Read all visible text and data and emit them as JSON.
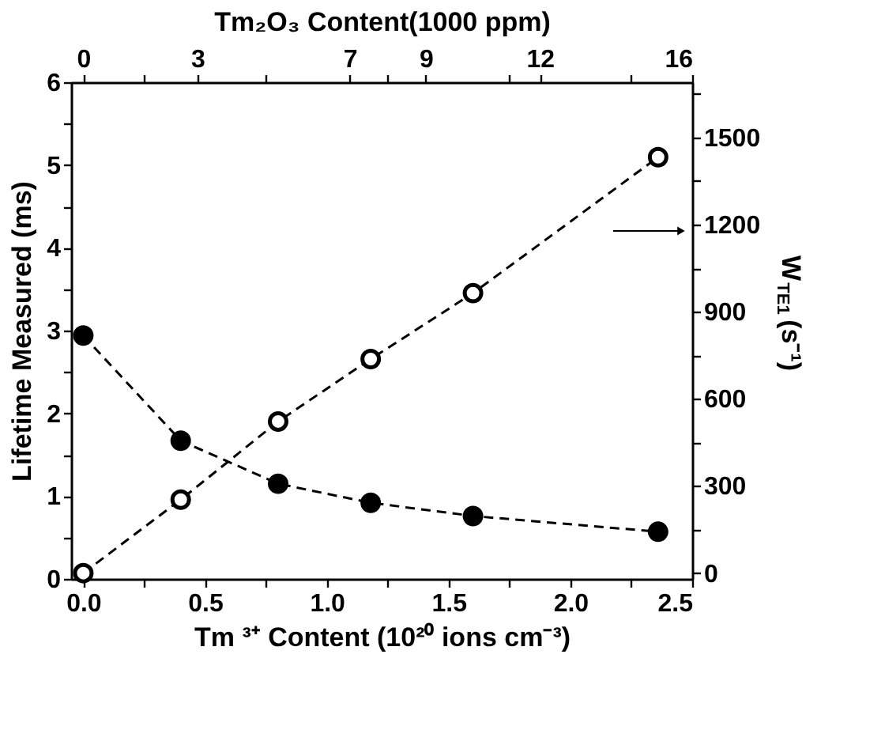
{
  "chart_data": {
    "type": "line",
    "xlabel": "Tm ³⁺ Content (10²⁰ ions cm⁻³)",
    "ylabel": "Lifetime Measured (ms)",
    "y2label": "W$_{TE1}$ (s⁻¹)",
    "x2label": "Tm₂O₃ Content(1000 ppm)",
    "xlim": [
      -0.05,
      2.5
    ],
    "xticks": [
      {
        "value": 0,
        "label": "0.0"
      },
      0.5,
      {
        "value": 1,
        "label": "1.0"
      },
      1.5,
      {
        "value": 2,
        "label": "2.0"
      },
      2.5,
      {
        "value": 0.25,
        "label": null
      },
      {
        "value": 0.75,
        "label": null
      },
      {
        "value": 1.25,
        "label": null
      },
      {
        "value": 1.75,
        "label": null
      },
      {
        "value": 2.25,
        "label": null
      }
    ],
    "x2lim": [
      -0.32,
      16
    ],
    "x2ticks": [
      0,
      3,
      7,
      9,
      12,
      16,
      {
        "value": 1.6,
        "label": null
      },
      {
        "value": 4.8,
        "label": null
      },
      {
        "value": 8,
        "label": null
      },
      {
        "value": 11.2,
        "label": null
      },
      {
        "value": 14.4,
        "label": null
      }
    ],
    "ylim": [
      0,
      6
    ],
    "yticks": [
      0,
      1,
      2,
      3,
      4,
      5,
      6,
      {
        "value": 0.5,
        "label": null
      },
      {
        "value": 1.5,
        "label": null
      },
      {
        "value": 2.5,
        "label": null
      },
      {
        "value": 3.5,
        "label": null
      },
      {
        "value": 4.5,
        "label": null
      },
      {
        "value": 5.5,
        "label": null
      }
    ],
    "y2lim": [
      -20,
      1690
    ],
    "y2ticks": [
      0,
      300,
      600,
      900,
      1200,
      1500,
      {
        "value": 150,
        "label": null
      },
      {
        "value": 450,
        "label": null
      },
      {
        "value": 750,
        "label": null
      },
      {
        "value": 1050,
        "label": null
      },
      {
        "value": 1350,
        "label": null
      },
      {
        "value": 1650,
        "label": null
      }
    ],
    "x": [
      0,
      0.4,
      0.8,
      1.18,
      1.6,
      2.36
    ],
    "series": [
      {
        "color": "#000000",
        "values": [
          2.94,
          1.67,
          1.15,
          0.92,
          0.76,
          0.57
        ]
      },
      {
        "color": "#000000",
        "axis": "y2",
        "values": [
          0,
          253,
          522,
          737,
          964,
          1432
        ]
      }
    ],
    "marker": "circle",
    "line_style": "dashed",
    "grid": false
  }
}
